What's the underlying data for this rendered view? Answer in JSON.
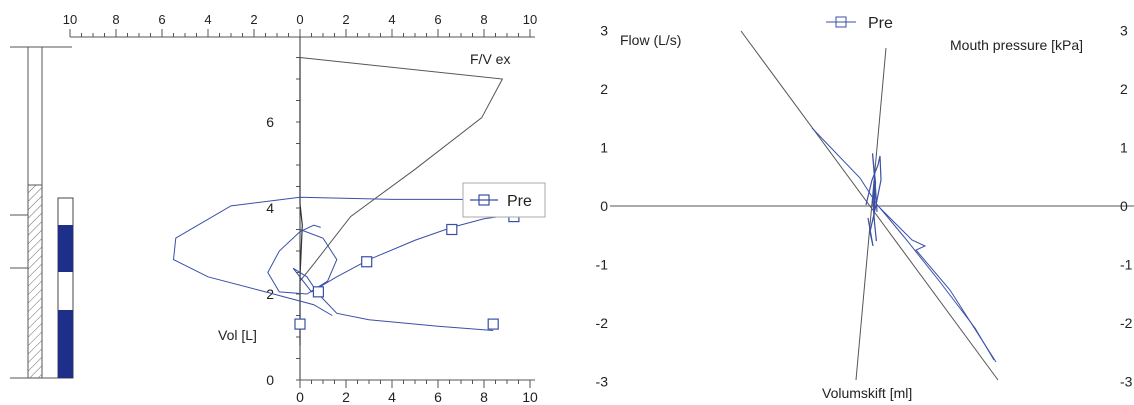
{
  "chart_data": [
    {
      "type": "line",
      "title": "F/V ex",
      "ylabel": "Vol [L]",
      "x_bottom_ticks": [
        "0",
        "2",
        "4",
        "6",
        "8",
        "10"
      ],
      "x_top_ticks": [
        "10",
        "8",
        "6",
        "4",
        "2",
        "0",
        "2",
        "4",
        "6",
        "8",
        "10"
      ],
      "y_ticks": [
        "0",
        "2",
        "4",
        "6"
      ],
      "xlim": [
        0,
        10
      ],
      "ylim": [
        0,
        8
      ],
      "legend": {
        "labels": [
          "Pre"
        ],
        "position": "right"
      },
      "series": [
        {
          "name": "Pre",
          "color": "#3a4fa8",
          "x": [
            8.4,
            6.0,
            3.0,
            1.6,
            0.8,
            0.3,
            -0.3,
            0.5,
            1.6,
            3.0,
            5.0,
            6.6,
            8.0,
            9.4
          ],
          "y": [
            1.15,
            1.25,
            1.4,
            1.55,
            2.0,
            2.4,
            2.6,
            2.05,
            2.4,
            2.8,
            3.25,
            3.55,
            3.75,
            3.85
          ]
        }
      ],
      "inspiratory_loop": {
        "color": "#3a4fa8",
        "x": [
          9.0,
          7.0,
          4.0,
          0.0,
          -3.0,
          -5.4,
          -5.5,
          -4.0,
          -1.5,
          0.6,
          1.4
        ],
        "y": [
          4.1,
          4.2,
          4.2,
          4.25,
          4.05,
          3.3,
          2.8,
          2.4,
          2.05,
          1.75,
          1.5
        ]
      },
      "marked_points": {
        "x": [
          8.4,
          6.6,
          2.9,
          0.8,
          0.0,
          9.3
        ],
        "y": [
          1.3,
          3.5,
          2.75,
          2.05,
          1.3,
          3.8
        ]
      },
      "predicted_curve": {
        "color": "#555555",
        "x": [
          0.0,
          8.8,
          7.9,
          5.0,
          2.2,
          0.6,
          0.0
        ],
        "y": [
          7.5,
          7.0,
          6.1,
          4.9,
          3.8,
          2.7,
          2.3
        ]
      },
      "vertical_trace": {
        "x": [
          0.0,
          0.0,
          0.1,
          0.0,
          0.0
        ],
        "y": [
          7.5,
          4.1,
          3.6,
          2.4,
          0.8
        ]
      }
    },
    {
      "type": "line",
      "ylabel": "Flow (L/s)",
      "y2label": "Mouth pressure [kPa]",
      "xlabel": "Volumskift [ml]",
      "y_ticks": [
        "3",
        "2",
        "1",
        "0",
        "-1",
        "-2",
        "-3"
      ],
      "y2_ticks": [
        "3",
        "2",
        "1",
        "0",
        "-1",
        "-2",
        "-3"
      ],
      "ylim": [
        -3,
        3
      ],
      "legend": {
        "labels": [
          "Pre"
        ],
        "position": "top"
      },
      "series": [
        {
          "name": "Pre",
          "color": "#3a4fa8",
          "x": [
            0.1,
            0.05,
            0.0,
            -0.05,
            0.05,
            0.0,
            0.08,
            0.02,
            -0.04,
            0.03,
            0.0
          ],
          "y": [
            -0.1,
            0.3,
            0.6,
            0.9,
            0.4,
            -0.2,
            -0.6,
            -0.3,
            0.1,
            0.5,
            0.0
          ]
        }
      ],
      "diagonal_line_start": [
        -3.0,
        3.0
      ],
      "diagonal_line_end": [
        3.0,
        -3.0
      ]
    }
  ],
  "sidebar_scale": {
    "fill_color": "#1e2f8a",
    "hatch_color": "#555555"
  }
}
